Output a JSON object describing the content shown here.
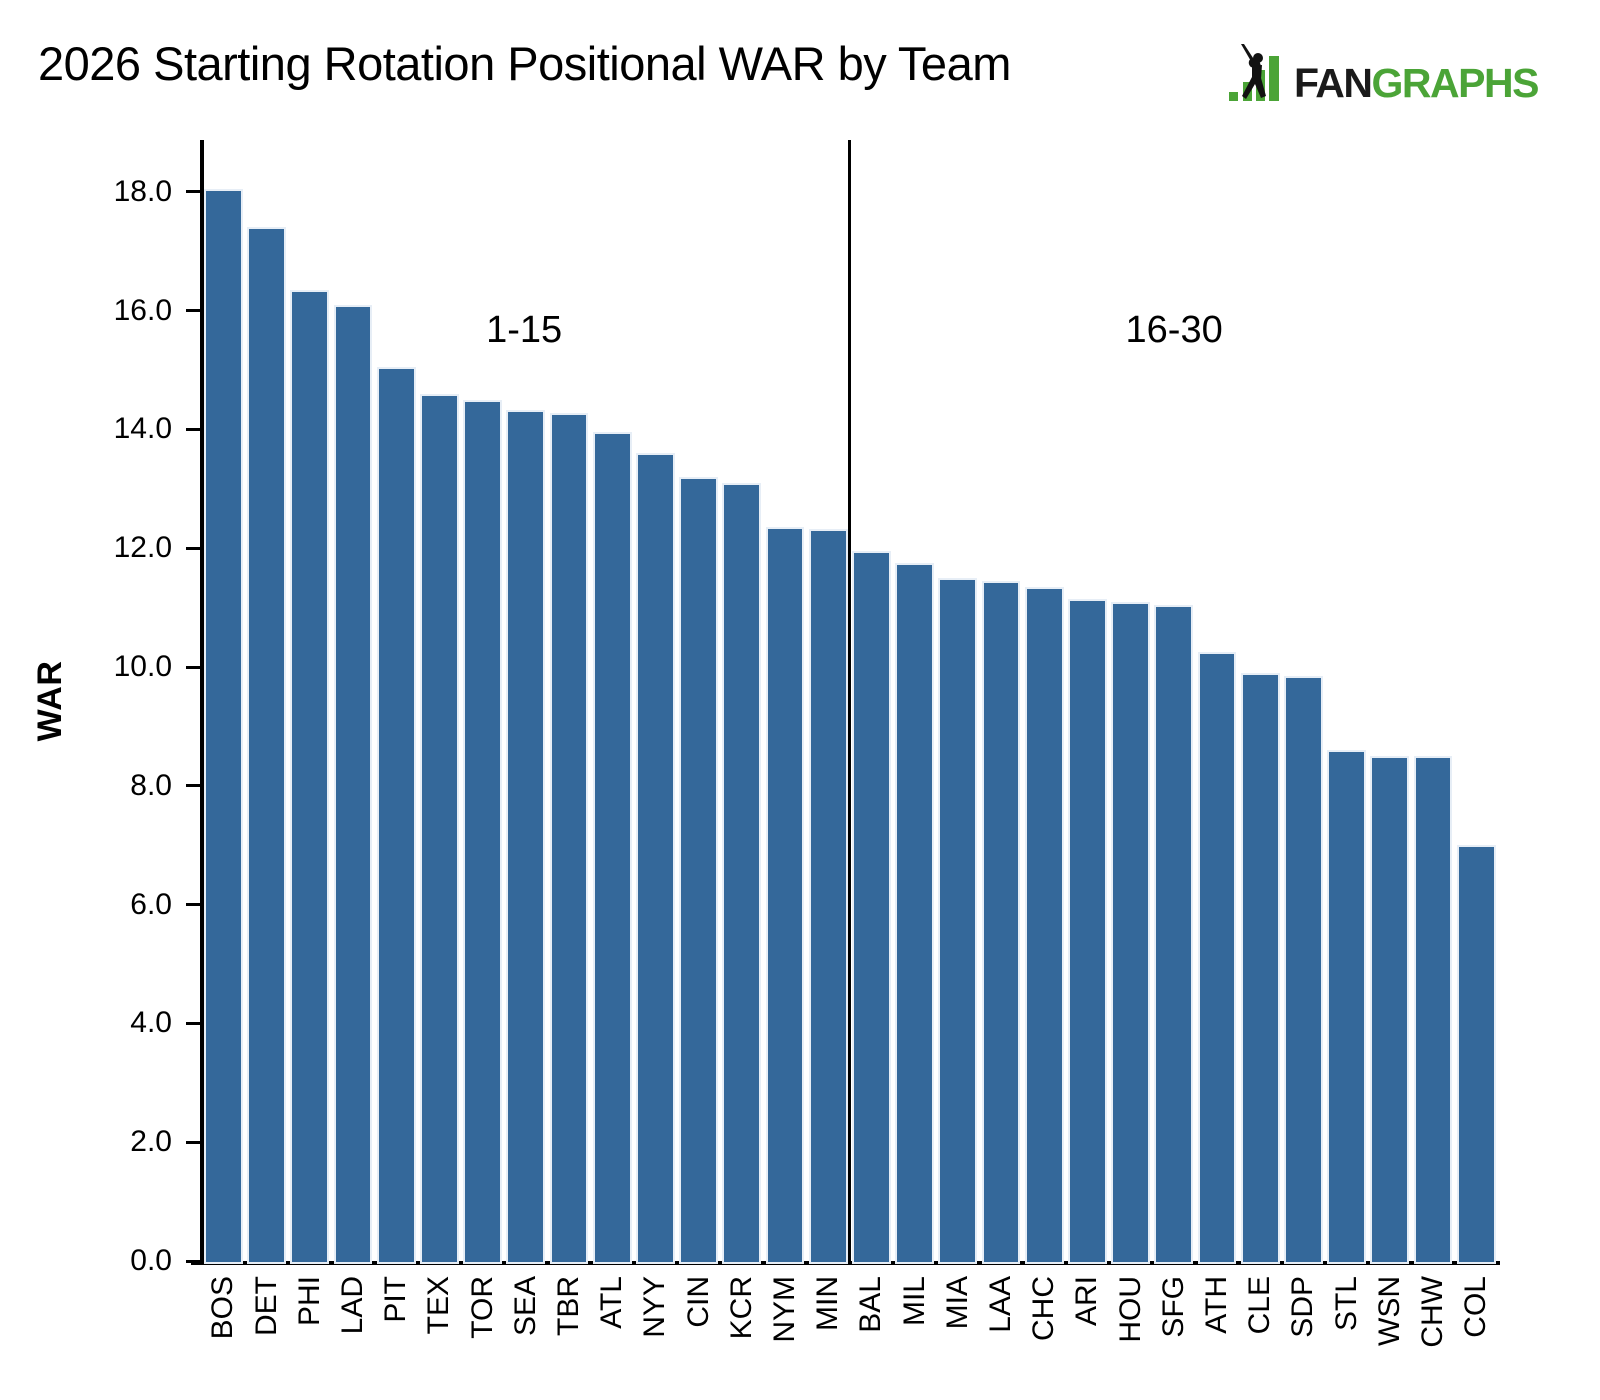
{
  "page": {
    "background": "#ffffff"
  },
  "header": {
    "title": "2026 Starting Rotation Positional WAR by Team",
    "logo": {
      "fan": "FAN",
      "graphs": "GRAPHS",
      "green": "#4ba437",
      "black": "#1a1a1a"
    }
  },
  "chart_data": {
    "type": "bar",
    "title": "2026 Starting Rotation Positional WAR by Team",
    "xlabel": "",
    "ylabel": "WAR",
    "ylim": [
      0,
      18.9
    ],
    "yticks": [
      0,
      2,
      4,
      6,
      8,
      10,
      12,
      14,
      16,
      18
    ],
    "ytick_labels": [
      "0.0",
      "2.0",
      "4.0",
      "6.0",
      "8.0",
      "10.0",
      "12.0",
      "14.0",
      "16.0",
      "18.0"
    ],
    "grid": false,
    "legend": "none",
    "bar_color": "#34689a",
    "bar_edge_color": "#e7eef6",
    "axis_color": "#000000",
    "divider_after_index": 14,
    "annotations": [
      {
        "text": "1-15",
        "group": "ranks-1-15"
      },
      {
        "text": "16-30",
        "group": "ranks-16-30"
      }
    ],
    "categories": [
      "BOS",
      "DET",
      "PHI",
      "LAD",
      "PIT",
      "TEX",
      "TOR",
      "SEA",
      "TBR",
      "ATL",
      "NYY",
      "CIN",
      "KCR",
      "NYM",
      "MIN",
      "BAL",
      "MIL",
      "MIA",
      "LAA",
      "CHC",
      "ARI",
      "HOU",
      "SFG",
      "ATH",
      "CLE",
      "SDP",
      "STL",
      "WSN",
      "CHW",
      "COL"
    ],
    "values": [
      18.05,
      17.4,
      16.35,
      16.1,
      15.05,
      14.6,
      14.5,
      14.32,
      14.28,
      13.95,
      13.6,
      13.2,
      13.1,
      12.35,
      12.32,
      11.95,
      11.75,
      11.5,
      11.45,
      11.35,
      11.15,
      11.1,
      11.05,
      10.25,
      9.9,
      9.85,
      8.6,
      8.5,
      8.5,
      7.0
    ]
  }
}
